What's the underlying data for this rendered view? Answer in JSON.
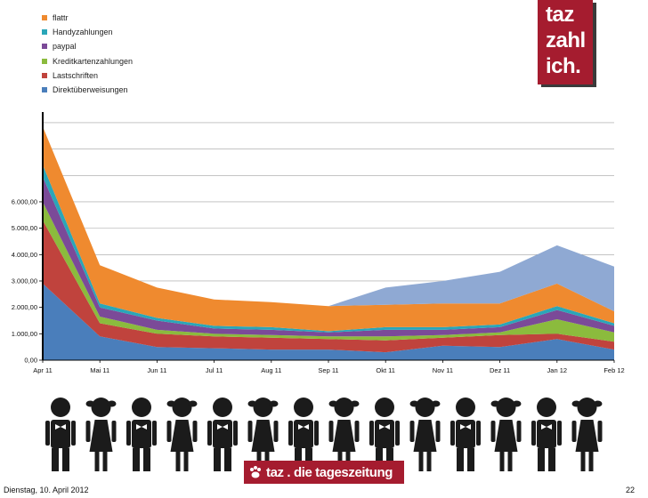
{
  "logo": {
    "lines": [
      "taz",
      "zahl",
      "ich."
    ]
  },
  "colors": {
    "flattr": "#ef8a2f",
    "handy": "#2aa6b8",
    "paypal": "#7b4a98",
    "kredit": "#8bbb3d",
    "last": "#c0433d",
    "direkt": "#4a7ebb",
    "extra": "#8fa9d3",
    "brand": "#a51c2f"
  },
  "chart_data": {
    "type": "area",
    "stacked": true,
    "categories": [
      "Apr 11",
      "Mai 11",
      "Jun 11",
      "Jul 11",
      "Aug 11",
      "Sep 11",
      "Okt 11",
      "Nov 11",
      "Dez 11",
      "Jan 12",
      "Feb 12"
    ],
    "yticks": [
      "0,00",
      "1.000,00",
      "2.000,00",
      "3.000,00",
      "4.000,00",
      "5.000,00",
      "6.000,00"
    ],
    "ylim": [
      0,
      9200
    ],
    "legend": [
      {
        "key": "flattr",
        "label": "flattr"
      },
      {
        "key": "handy",
        "label": "Handyzahlungen"
      },
      {
        "key": "paypal",
        "label": "paypal"
      },
      {
        "key": "kredit",
        "label": "Kreditkartenzahlungen"
      },
      {
        "key": "last",
        "label": "Lastschriften"
      },
      {
        "key": "direkt",
        "label": "Direktüberweisungen"
      }
    ],
    "series": [
      {
        "key": "direkt",
        "name": "Direktüberweisungen",
        "values": [
          2900,
          900,
          500,
          450,
          400,
          400,
          300,
          550,
          500,
          800,
          400
        ]
      },
      {
        "key": "last",
        "name": "Lastschriften",
        "values": [
          2400,
          500,
          500,
          450,
          450,
          400,
          450,
          300,
          450,
          200,
          300
        ]
      },
      {
        "key": "kredit",
        "name": "Kreditkartenzahlungen",
        "values": [
          700,
          250,
          150,
          100,
          100,
          100,
          150,
          100,
          100,
          550,
          350
        ]
      },
      {
        "key": "paypal",
        "name": "paypal",
        "values": [
          950,
          350,
          350,
          200,
          200,
          150,
          250,
          200,
          200,
          350,
          250
        ]
      },
      {
        "key": "handy",
        "name": "Handyzahlungen",
        "values": [
          450,
          150,
          100,
          100,
          100,
          50,
          100,
          100,
          100,
          150,
          100
        ]
      },
      {
        "key": "flattr",
        "name": "flattr",
        "values": [
          1450,
          1450,
          1150,
          1000,
          950,
          950,
          850,
          900,
          800,
          850,
          450
        ]
      },
      {
        "key": "extra",
        "name": "",
        "values": [
          0,
          0,
          0,
          0,
          0,
          0,
          650,
          850,
          1200,
          1450,
          1700
        ]
      }
    ]
  },
  "footer": {
    "date": "Dienstag, 10. April 2012",
    "page": "22",
    "brand": "taz . die tageszeitung"
  }
}
